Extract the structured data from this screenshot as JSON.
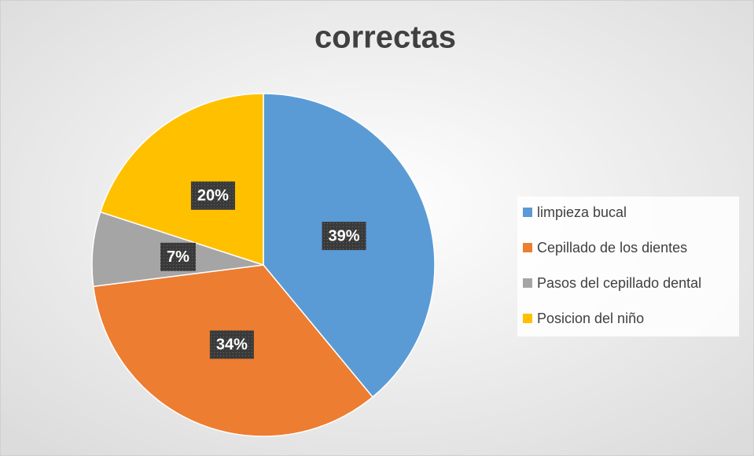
{
  "chart_data": {
    "type": "pie",
    "title": "correctas",
    "categories": [
      "limpieza bucal",
      "Cepillado de los dientes",
      "Pasos del cepillado dental",
      "Posicion del niño"
    ],
    "values": [
      39,
      34,
      7,
      20
    ],
    "value_labels": [
      "39%",
      "34%",
      "7%",
      "20%"
    ],
    "colors": [
      "#5b9bd5",
      "#ed7d31",
      "#a5a5a5",
      "#ffc000"
    ],
    "legend": "right"
  }
}
